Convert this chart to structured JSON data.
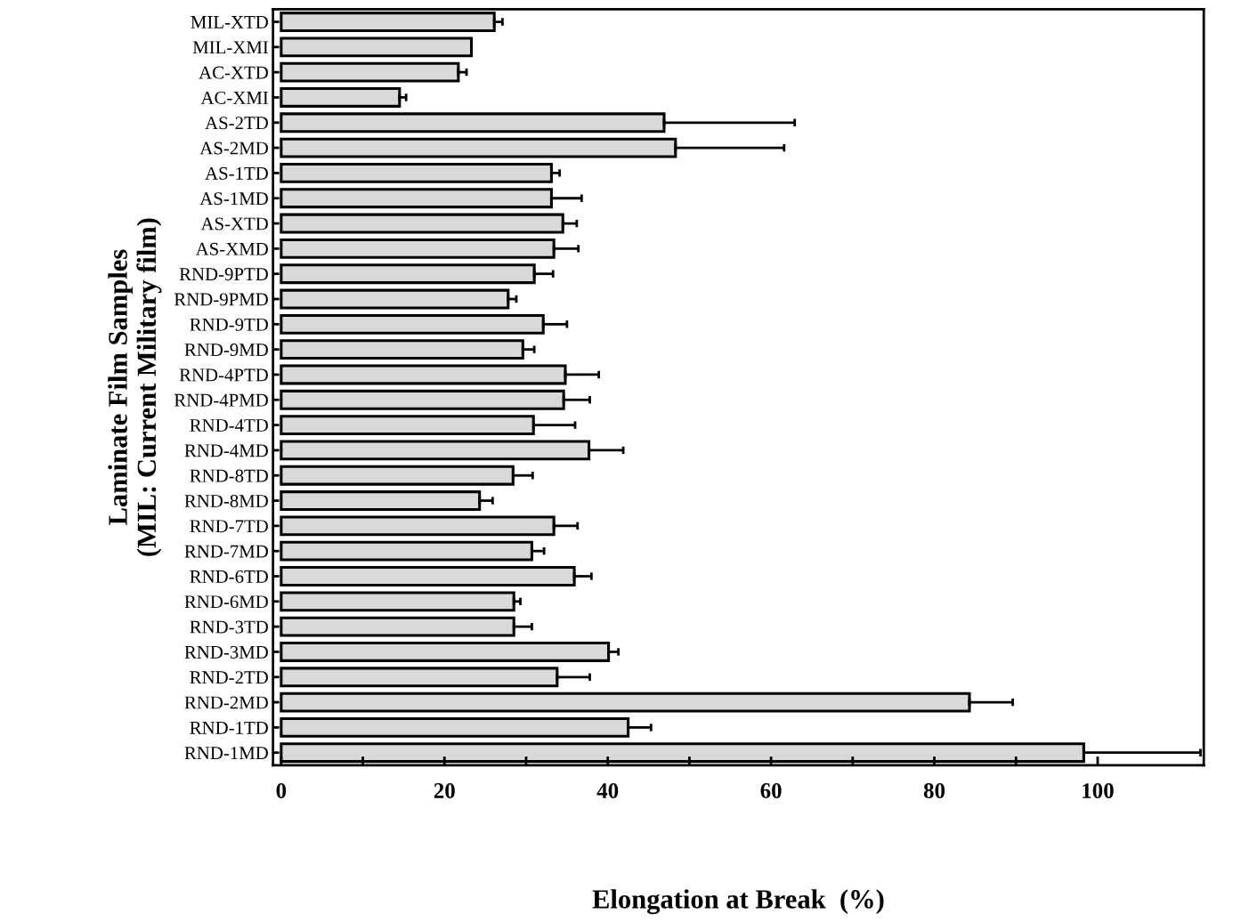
{
  "chart_data": {
    "type": "bar",
    "orientation": "horizontal",
    "xlabel": "Elongation at Break  (%)",
    "ylabel": "Laminate Film Samples\n(MIL: Current Military film)",
    "categories": [
      "MIL-XTD",
      "MIL-XMI",
      "AC-XTD",
      "AC-XMI",
      "AS-2TD",
      "AS-2MD",
      "AS-1TD",
      "AS-1MD",
      "AS-XTD",
      "AS-XMD",
      "RND-9PTD",
      "RND-9PMD",
      "RND-9TD",
      "RND-9MD",
      "RND-4PTD",
      "RND-4PMD",
      "RND-4TD",
      "RND-4MD",
      "RND-8TD",
      "RND-8MD",
      "RND-7TD",
      "RND-7MD",
      "RND-6TD",
      "RND-6MD",
      "RND-3TD",
      "RND-3MD",
      "RND-2TD",
      "RND-2MD",
      "RND-1TD",
      "RND-1MD"
    ],
    "values": [
      26.1,
      23.3,
      21.7,
      14.5,
      46.9,
      48.3,
      33.1,
      33.1,
      34.5,
      33.4,
      31.0,
      27.8,
      32.1,
      29.6,
      34.8,
      34.6,
      30.9,
      37.7,
      28.4,
      24.3,
      33.4,
      30.7,
      35.9,
      28.5,
      28.5,
      40.1,
      33.8,
      84.3,
      42.5,
      98.3
    ],
    "errors": [
      [
        26.1,
        27.1
      ],
      null,
      [
        21.7,
        22.7
      ],
      [
        14.5,
        15.3
      ],
      [
        46.9,
        62.9
      ],
      [
        48.3,
        61.6
      ],
      [
        33.1,
        34.1
      ],
      [
        33.1,
        36.8
      ],
      [
        34.5,
        36.2
      ],
      [
        33.4,
        36.4
      ],
      [
        31.0,
        33.3
      ],
      [
        27.8,
        28.8
      ],
      [
        32.1,
        35.0
      ],
      [
        29.6,
        31.0
      ],
      [
        34.8,
        38.9
      ],
      [
        34.6,
        37.8
      ],
      [
        30.9,
        36.0
      ],
      [
        37.7,
        41.9
      ],
      [
        28.4,
        30.8
      ],
      [
        24.3,
        25.9
      ],
      [
        33.4,
        36.3
      ],
      [
        30.7,
        32.2
      ],
      [
        35.9,
        38.0
      ],
      [
        28.5,
        29.3
      ],
      [
        28.5,
        30.7
      ],
      [
        40.1,
        41.3
      ],
      [
        33.8,
        37.8
      ],
      [
        84.3,
        89.6
      ],
      [
        42.5,
        45.3
      ],
      [
        98.3,
        112.6
      ]
    ],
    "color": "#d9d9d9",
    "xlim": [
      -1,
      113
    ],
    "xticks": [
      0,
      {
        "value": 10,
        "label": null
      },
      20,
      {
        "value": 30,
        "label": null
      },
      40,
      {
        "value": 50,
        "label": null
      },
      60,
      {
        "value": 70,
        "label": null
      },
      80,
      {
        "value": 90,
        "label": null
      },
      100
    ],
    "grid": false,
    "legend": false
  }
}
